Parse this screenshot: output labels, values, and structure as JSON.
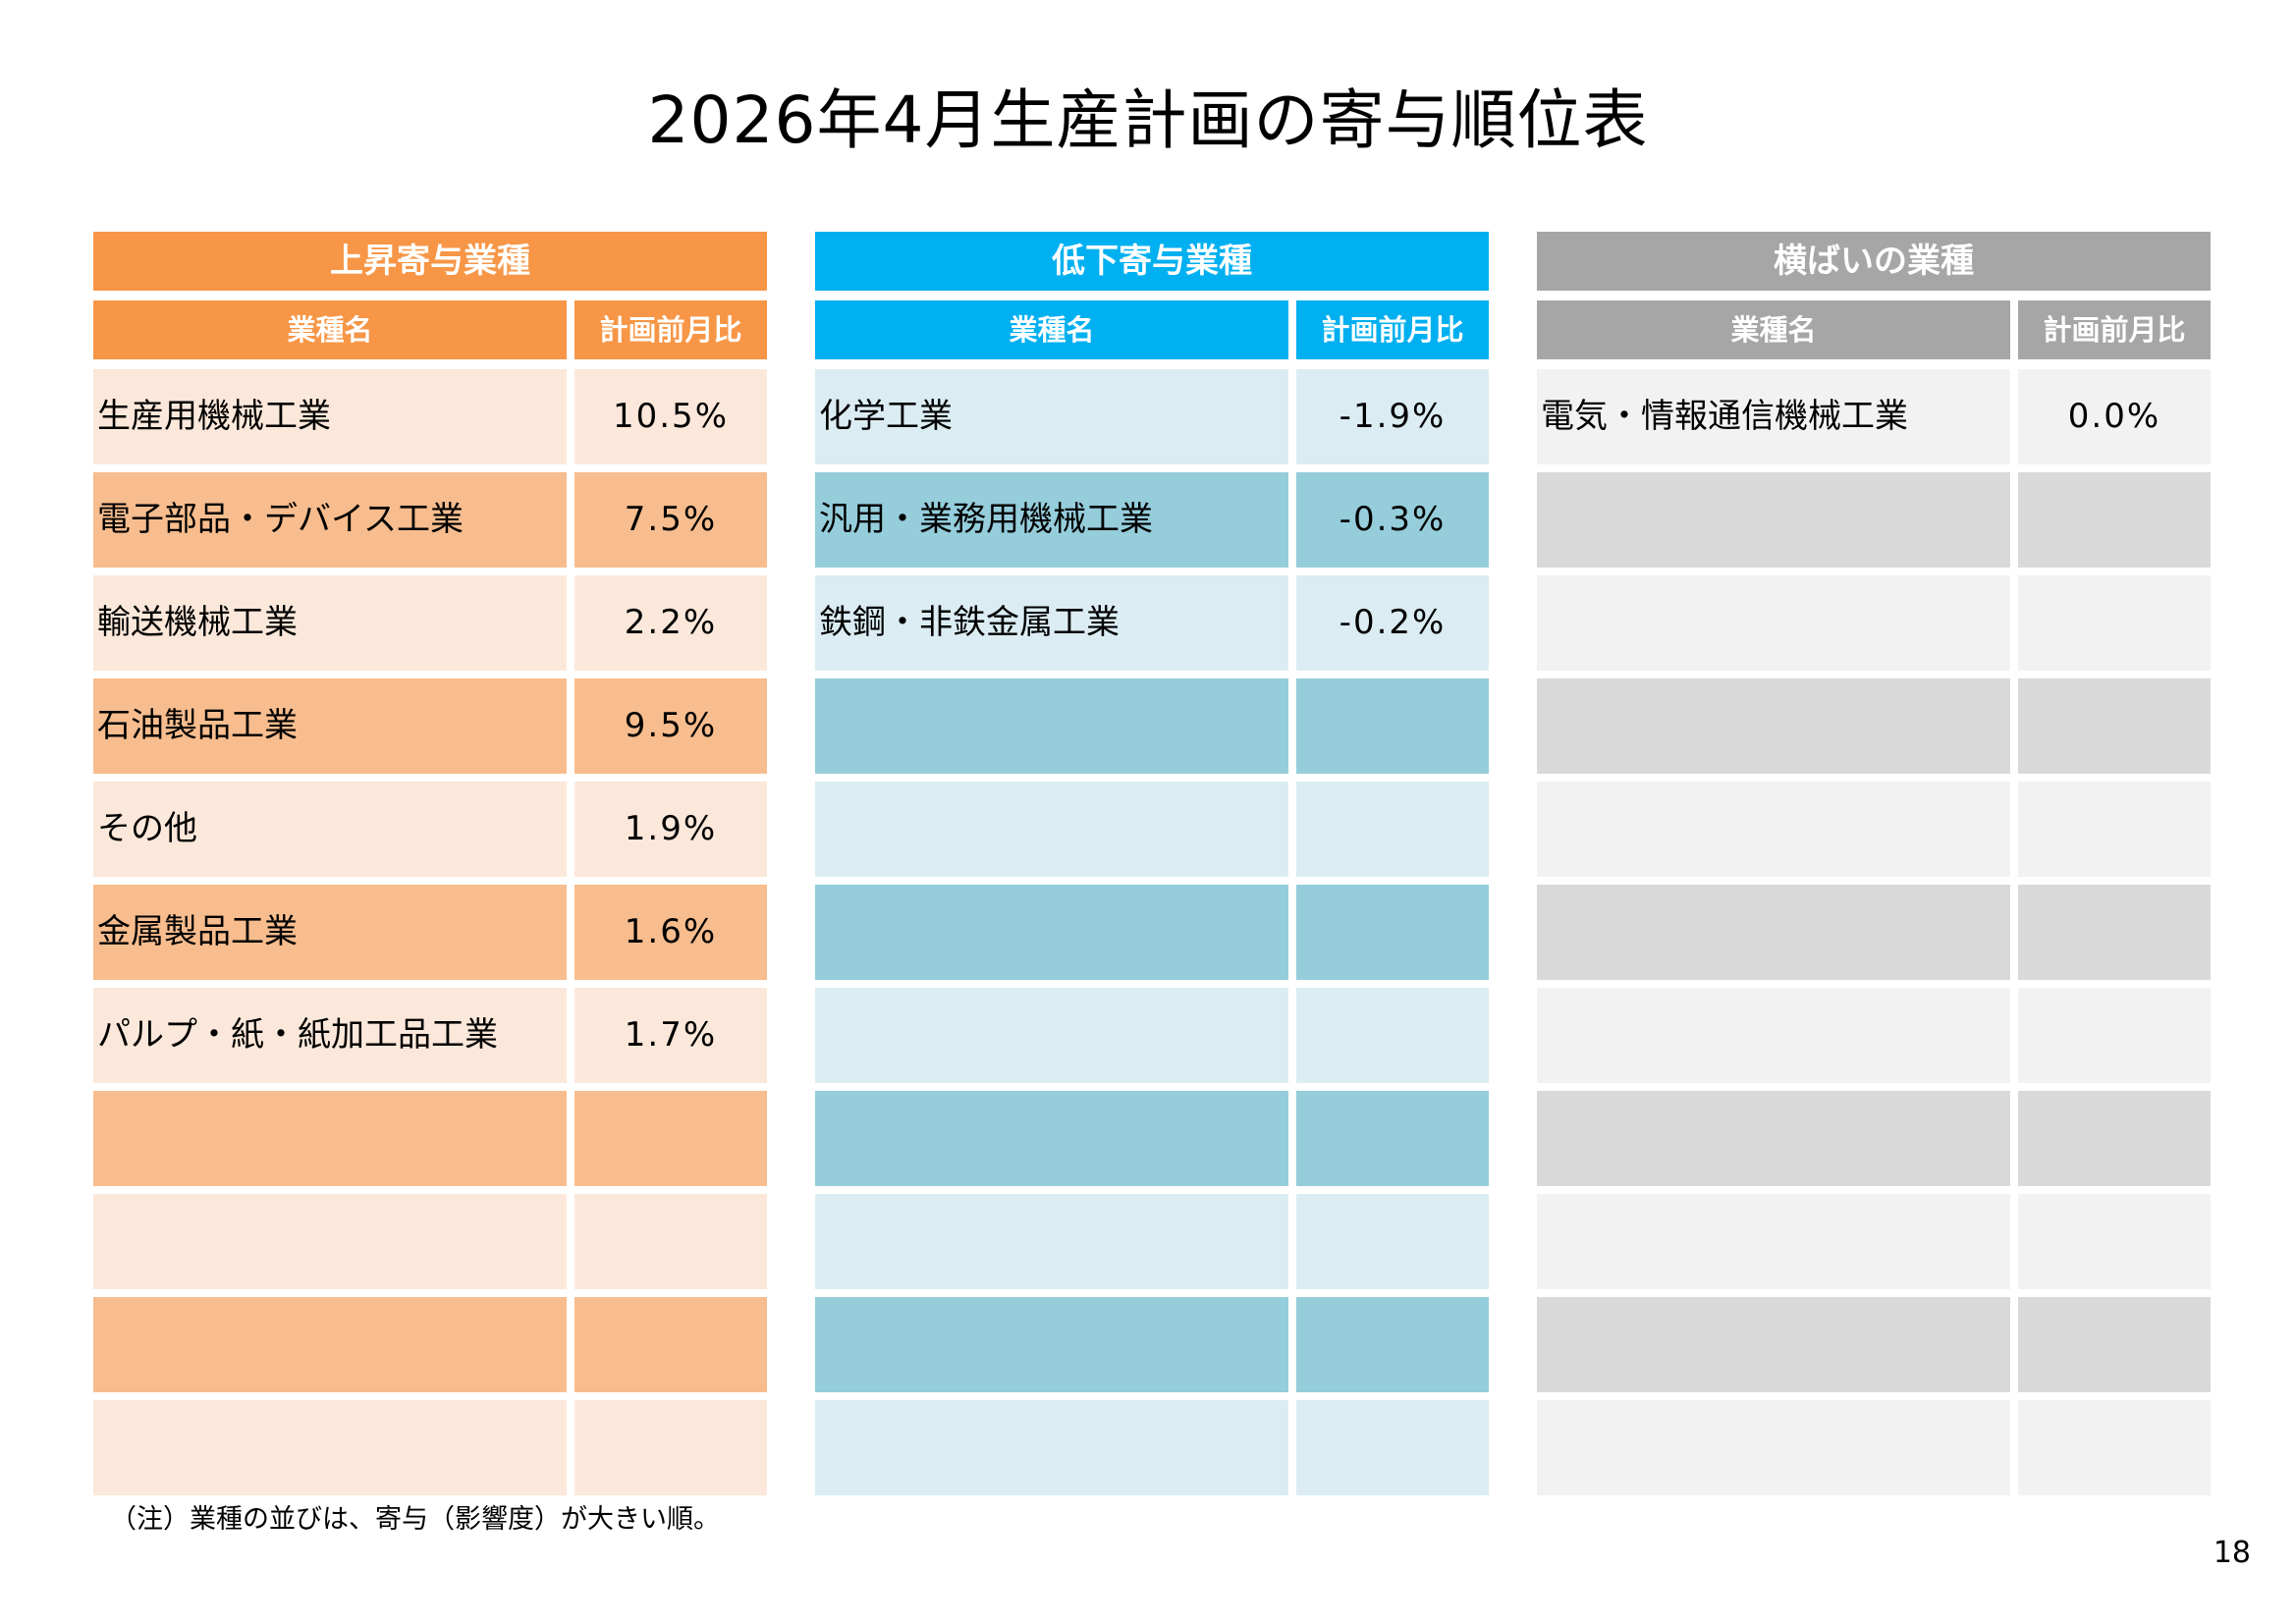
{
  "title": "2026年4月生産計画の寄与順位表",
  "panels": [
    {
      "heading": "上昇寄与業種",
      "col_name": "業種名",
      "col_value": "計画前月比",
      "colors": {
        "header": "#f79646",
        "row_dark": "#f8bd8e",
        "row_light": "#fce8da"
      },
      "rows": [
        {
          "name": "生産用機械工業",
          "value": "10.5%"
        },
        {
          "name": "電子部品・デバイス工業",
          "value": "7.5%"
        },
        {
          "name": "輸送機械工業",
          "value": "2.2%"
        },
        {
          "name": "石油製品工業",
          "value": "9.5%"
        },
        {
          "name": "その他",
          "value": "1.9%"
        },
        {
          "name": "金属製品工業",
          "value": "1.6%"
        },
        {
          "name": "パルプ・紙・紙加工品工業",
          "value": "1.7%"
        },
        {
          "name": "",
          "value": ""
        },
        {
          "name": "",
          "value": ""
        },
        {
          "name": "",
          "value": ""
        },
        {
          "name": "",
          "value": ""
        }
      ]
    },
    {
      "heading": "低下寄与業種",
      "col_name": "業種名",
      "col_value": "計画前月比",
      "colors": {
        "header": "#00b0f0",
        "row_dark": "#95cddb",
        "row_light": "#dbedf3"
      },
      "rows": [
        {
          "name": "化学工業",
          "value": "-1.9%"
        },
        {
          "name": "汎用・業務用機械工業",
          "value": "-0.3%"
        },
        {
          "name": "鉄鋼・非鉄金属工業",
          "value": "-0.2%"
        },
        {
          "name": "",
          "value": ""
        },
        {
          "name": "",
          "value": ""
        },
        {
          "name": "",
          "value": ""
        },
        {
          "name": "",
          "value": ""
        },
        {
          "name": "",
          "value": ""
        },
        {
          "name": "",
          "value": ""
        },
        {
          "name": "",
          "value": ""
        },
        {
          "name": "",
          "value": ""
        }
      ]
    },
    {
      "heading": "横ばいの業種",
      "col_name": "業種名",
      "col_value": "計画前月比",
      "colors": {
        "header": "#a6a6a6",
        "row_dark": "#d9d9d9",
        "row_light": "#f2f2f2"
      },
      "rows": [
        {
          "name": "電気・情報通信機械工業",
          "value": "0.0%"
        },
        {
          "name": "",
          "value": ""
        },
        {
          "name": "",
          "value": ""
        },
        {
          "name": "",
          "value": ""
        },
        {
          "name": "",
          "value": ""
        },
        {
          "name": "",
          "value": ""
        },
        {
          "name": "",
          "value": ""
        },
        {
          "name": "",
          "value": ""
        },
        {
          "name": "",
          "value": ""
        },
        {
          "name": "",
          "value": ""
        },
        {
          "name": "",
          "value": ""
        }
      ]
    }
  ],
  "note": "（注）業種の並びは、寄与（影響度）が大きい順。",
  "page_number": "18"
}
